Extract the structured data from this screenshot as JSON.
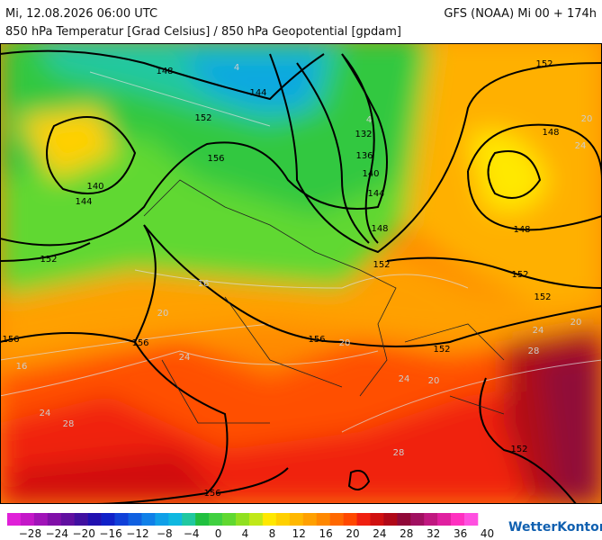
{
  "header": {
    "left": "Mi, 12.08.2026 06:00 UTC",
    "right": "GFS (NOAA) Mi 00 + 174h",
    "subtitle": "850 hPa Temperatur [Grad Celsius] / 850 hPa Geopotential [gpdam]"
  },
  "map": {
    "contour_labels": [
      "148",
      "144",
      "152",
      "140",
      "144",
      "152",
      "156",
      "132",
      "136",
      "140",
      "144",
      "148",
      "152",
      "152",
      "148",
      "148",
      "152",
      "152",
      "152",
      "156",
      "156",
      "156",
      "156",
      "152"
    ],
    "isotherm_labels": [
      "4",
      "4",
      "16",
      "20",
      "24",
      "28",
      "24",
      "16",
      "20",
      "24",
      "28",
      "24",
      "20",
      "20",
      "24",
      "28",
      "20"
    ]
  },
  "legend": {
    "labels": [
      "−28",
      "−24",
      "−20",
      "−16",
      "−12",
      "−8",
      "−4",
      "0",
      "4",
      "8",
      "12",
      "16",
      "20",
      "24",
      "28",
      "32",
      "36",
      "40"
    ],
    "colors": [
      "#e020d8",
      "#c418c8",
      "#a014b8",
      "#8010a8",
      "#6010a0",
      "#4010a0",
      "#2010b0",
      "#1020c8",
      "#1040d8",
      "#1060e0",
      "#1080e8",
      "#10a0e8",
      "#10b8e0",
      "#20c8a0",
      "#20c040",
      "#40d040",
      "#60d830",
      "#90e020",
      "#c0e818",
      "#ffe800",
      "#ffd000",
      "#ffb800",
      "#ffa000",
      "#ff8800",
      "#ff6800",
      "#ff4800",
      "#f02010",
      "#d01010",
      "#b00818",
      "#900838",
      "#a01060",
      "#c01880",
      "#e020a0",
      "#ff30c0",
      "#ff50e0"
    ]
  },
  "brand": "WetterKontor"
}
